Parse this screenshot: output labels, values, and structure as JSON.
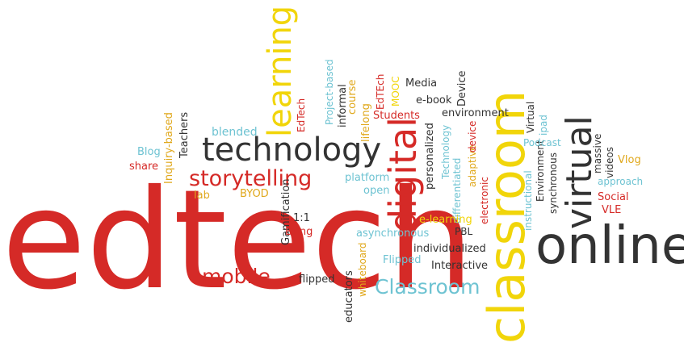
{
  "words": {
    "edtech": "edtech",
    "classroom_v": "classroom",
    "online": "online",
    "technology": "technology",
    "learning": "learning",
    "digital": "digital",
    "virtual": "virtual",
    "storytelling": "storytelling",
    "mobile": "mobile",
    "classroom_h": "Classroom",
    "blog": "Blog",
    "share": "share",
    "inquiry_based": "Inquiry-based",
    "teachers": "Teachers",
    "blended": "blended",
    "edtech_small": "EdTech",
    "project_based": "Project-based",
    "informal": "informal",
    "lifelong": "lifelong",
    "course": "course",
    "edtech_caps": "EdTEch",
    "mooc": "MOOC",
    "students": "Students",
    "media": "Media",
    "ebook": "e-book",
    "device": "Device",
    "environment": "environment",
    "personalized": "personalized",
    "technology_small": "Technology",
    "differentiated": "differentiated",
    "adaptive": "adaptive",
    "device_small": "device",
    "pbl": "PBL",
    "electronic": "electronic",
    "instructional": "instructional",
    "environment_v": "Environment",
    "synchronous": "synchronous",
    "virtual_small": "Virtual",
    "ipad": "ipad",
    "podcast": "Podcast",
    "massive": "massive",
    "videos": "videos",
    "vlog": "Vlog",
    "approach": "approach",
    "social": "Social",
    "vle": "VLE",
    "lab": "lab",
    "byod": "BYOD",
    "gamification": "Gamification",
    "platform": "platform",
    "open": "open",
    "elearning": "e-learning",
    "asynchronous": "asynchronous",
    "one_to_one": "1:1",
    "bring": "Bring",
    "individualized": "individualized",
    "flipped_cap": "Flipped",
    "interactive": "Interactive",
    "educators": "educators",
    "whiteboard": "whiteboard",
    "flipped": "flipped"
  },
  "colors": {
    "red": "#d52a27",
    "dark": "#333333",
    "yellow": "#f1d50a",
    "blue": "#6ec3d2",
    "gold": "#e0a81c"
  }
}
